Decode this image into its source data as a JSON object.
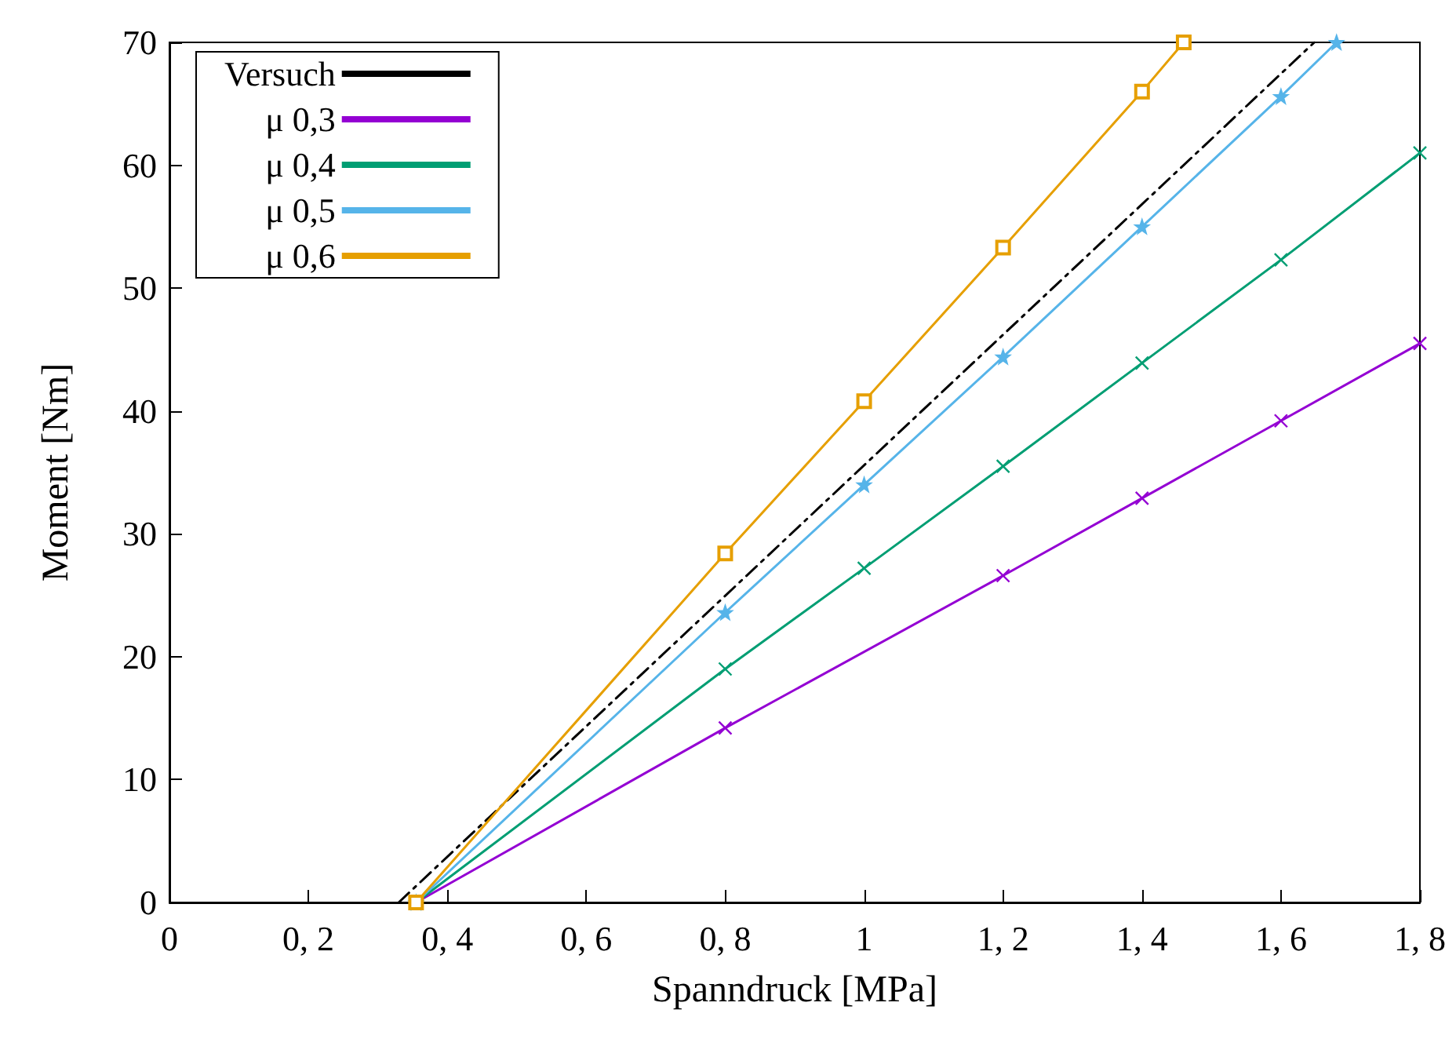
{
  "chart_data": {
    "type": "line",
    "xlabel": "Spanndruck [MPa]",
    "ylabel": "Moment [Nm]",
    "xlim": [
      0,
      1.8
    ],
    "xticks": [
      0,
      {
        "value": 0.2,
        "label": "0, 2"
      },
      {
        "value": 0.4,
        "label": "0, 4"
      },
      {
        "value": 0.6,
        "label": "0, 6"
      },
      {
        "value": 0.8,
        "label": "0, 8"
      },
      1,
      {
        "value": 1.2,
        "label": "1, 2"
      },
      {
        "value": 1.4,
        "label": "1, 4"
      },
      {
        "value": 1.6,
        "label": "1, 6"
      },
      {
        "value": 1.8,
        "label": "1, 8"
      }
    ],
    "ylim": [
      0,
      70
    ],
    "yticks": [
      0,
      10,
      20,
      30,
      40,
      50,
      60,
      70
    ],
    "grid": false,
    "legend": "top left",
    "series": [
      {
        "name": "Versuch",
        "color": "#000000",
        "line_style": "dashed",
        "marker": "none",
        "x": [
          0.33,
          1.648
        ],
        "values": [
          0,
          70
        ]
      },
      {
        "name": "μ 0,3",
        "color": "#9400d3",
        "line_style": "solid",
        "marker": "cross",
        "x": [
          0.355,
          0.8,
          1.2,
          1.4,
          1.6,
          1.8
        ],
        "values": [
          0,
          14.2,
          26.6,
          32.9,
          39.2,
          45.5
        ]
      },
      {
        "name": "μ 0,4",
        "color": "#009e73",
        "line_style": "solid",
        "marker": "cross",
        "x": [
          0.355,
          0.8,
          1.0,
          1.2,
          1.4,
          1.6,
          1.8
        ],
        "values": [
          0,
          19,
          27.2,
          35.5,
          43.9,
          52.3,
          61
        ]
      },
      {
        "name": "μ 0,5",
        "color": "#56b4e9",
        "line_style": "solid",
        "marker": "star",
        "x": [
          0.355,
          0.8,
          1.0,
          1.2,
          1.4,
          1.6,
          1.68
        ],
        "values": [
          0,
          23.6,
          34,
          44.4,
          55,
          65.6,
          70
        ]
      },
      {
        "name": "μ 0,6",
        "color": "#e69f00",
        "line_style": "solid",
        "marker": "square",
        "x": [
          0.355,
          0.8,
          1.0,
          1.2,
          1.4,
          1.46
        ],
        "values": [
          0,
          28.4,
          40.8,
          53.3,
          66,
          70
        ]
      }
    ]
  }
}
